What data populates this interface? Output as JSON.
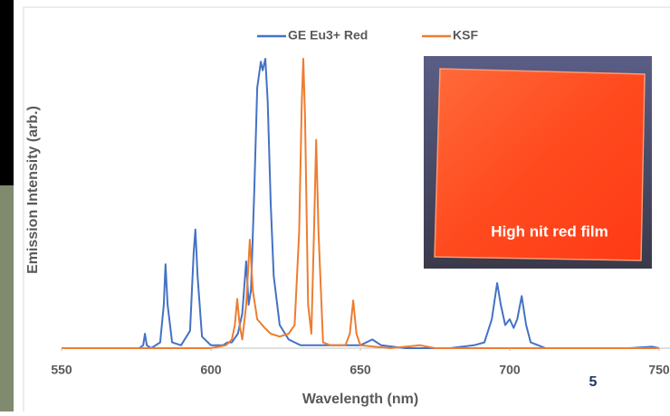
{
  "chart_data": {
    "type": "line",
    "xlabel": "Wavelength (nm)",
    "ylabel": "Emission Intensity (arb.)",
    "xlim": [
      550,
      750
    ],
    "xticks": [
      550,
      600,
      650,
      700,
      750
    ],
    "ylim": [
      0,
      1
    ],
    "legend": "top",
    "series": [
      {
        "name": "GE Eu3+ Red",
        "color": "#4472c4",
        "x": [
          550,
          576,
          577.3,
          577.9,
          578.5,
          580,
          583,
          584.2,
          584.8,
          585.5,
          587,
          590,
          593,
          594.2,
          594.8,
          595.5,
          597,
          600,
          604,
          605.5,
          607,
          609,
          610.5,
          611.8,
          612.6,
          613.4,
          614.5,
          615.5,
          616.7,
          617.3,
          618.2,
          619,
          620,
          621,
          623,
          626,
          630,
          640,
          650,
          654,
          657,
          665,
          680,
          688,
          691.5,
          694,
          695.8,
          697,
          698.5,
          700,
          701.3,
          702.5,
          704,
          705.5,
          707,
          712,
          720,
          740,
          747.6,
          750
        ],
        "values": [
          0,
          0,
          0.01,
          0.05,
          0.01,
          0,
          0.02,
          0.15,
          0.29,
          0.15,
          0.02,
          0.01,
          0.06,
          0.33,
          0.41,
          0.25,
          0.04,
          0.01,
          0.01,
          0.02,
          0.02,
          0.05,
          0.12,
          0.3,
          0.15,
          0.2,
          0.55,
          0.9,
          0.99,
          0.96,
          1.0,
          0.85,
          0.5,
          0.25,
          0.08,
          0.03,
          0.01,
          0.01,
          0.01,
          0.03,
          0.01,
          0,
          0,
          0.01,
          0.02,
          0.1,
          0.225,
          0.15,
          0.08,
          0.1,
          0.07,
          0.1,
          0.18,
          0.08,
          0.02,
          0,
          0,
          0,
          0.005,
          0
        ]
      },
      {
        "name": "KSF",
        "color": "#ed7d31",
        "x": [
          550,
          600,
          605,
          607,
          608,
          608.8,
          609.6,
          610.5,
          611.8,
          613,
          614,
          615.5,
          618,
          620,
          623,
          626,
          628,
          629.5,
          630.4,
          630.9,
          631.5,
          632.5,
          633.6,
          634.5,
          635.2,
          636,
          637.5,
          640,
          645,
          646.5,
          647.6,
          648.7,
          650,
          660,
          670,
          675,
          750
        ],
        "values": [
          0,
          0,
          0.01,
          0.03,
          0.08,
          0.17,
          0.08,
          0.03,
          0.15,
          0.375,
          0.2,
          0.1,
          0.07,
          0.05,
          0.04,
          0.05,
          0.08,
          0.4,
          0.85,
          1.0,
          0.8,
          0.15,
          0.05,
          0.4,
          0.72,
          0.4,
          0.02,
          0.01,
          0.01,
          0.05,
          0.165,
          0.05,
          0.01,
          0,
          0.01,
          0,
          0
        ]
      }
    ],
    "annotations": [
      "High nit red film"
    ]
  },
  "page_number": "5"
}
